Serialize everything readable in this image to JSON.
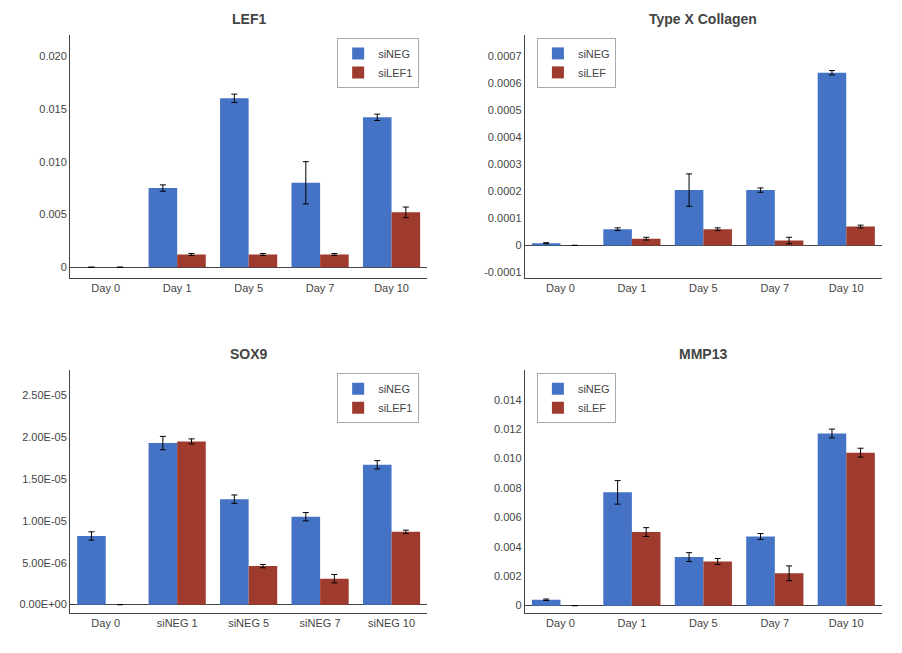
{
  "chart_data": [
    {
      "type": "bar",
      "title": "LEF1",
      "categories": [
        "Day 0",
        "Day 1",
        "Day 5",
        "Day 7",
        "Day 10"
      ],
      "series": [
        {
          "name": "siNEG",
          "color": "#4472C4",
          "values": [
            0,
            0.0075,
            0.016,
            0.008,
            0.0142
          ],
          "errors": [
            0,
            0.0003,
            0.0004,
            0.002,
            0.0003
          ]
        },
        {
          "name": "siLEF1",
          "color": "#9E3B2E",
          "values": [
            0,
            0.0012,
            0.0012,
            0.0012,
            0.0052
          ],
          "errors": [
            0,
            0.0001,
            0.0001,
            0.0001,
            0.0005
          ]
        }
      ],
      "ylim": [
        -0.001,
        0.022
      ],
      "yticks": [
        0,
        0.005,
        {
          "value": 0.01,
          "label": "0.010"
        },
        0.015,
        {
          "value": 0.02,
          "label": "0.020"
        }
      ],
      "grid": false,
      "legend": "upper right"
    },
    {
      "type": "bar",
      "title": "Type X Collagen",
      "categories": [
        "Day 0",
        "Day 1",
        "Day 5",
        "Day 7",
        "Day 10"
      ],
      "series": [
        {
          "name": "siNEG",
          "color": "#4472C4",
          "values": [
            8e-06,
            6e-05,
            0.000205,
            0.000205,
            0.00064
          ],
          "errors": [
            2e-06,
            5e-06,
            6e-05,
            8e-06,
            8e-06
          ]
        },
        {
          "name": "siLEF",
          "color": "#9E3B2E",
          "values": [
            0,
            2.5e-05,
            6e-05,
            1.8e-05,
            7e-05
          ],
          "errors": [
            0,
            5e-06,
            5e-06,
            1.2e-05,
            5e-06
          ]
        }
      ],
      "ylim": [
        -0.00012,
        0.00078
      ],
      "yticks": [
        -0.0001,
        0,
        0.0001,
        0.0002,
        0.0003,
        0.0004,
        0.0005,
        0.0006,
        0.0007
      ],
      "grid": false,
      "legend": "upper left"
    },
    {
      "type": "bar",
      "title": "SOX9",
      "categories": [
        "Day 0",
        "siNEG 1",
        "siNEG 5",
        "siNEG 7",
        "siNEG 10"
      ],
      "series": [
        {
          "name": "siNEG",
          "color": "#4472C4",
          "values": [
            8.2e-06,
            1.93e-05,
            1.26e-05,
            1.05e-05,
            1.67e-05
          ],
          "errors": [
            5e-07,
            8e-07,
            5e-07,
            5e-07,
            5e-07
          ]
        },
        {
          "name": "siLEF1",
          "color": "#9E3B2E",
          "values": [
            0,
            1.95e-05,
            4.6e-06,
            3.1e-06,
            8.7e-06
          ],
          "errors": [
            0,
            3e-07,
            2e-07,
            5e-07,
            2e-07
          ]
        }
      ],
      "ylim": [
        -1e-06,
        2.8e-05
      ],
      "yticks": [
        {
          "value": 0,
          "label": "0.00E+00"
        },
        {
          "value": 5e-06,
          "label": "5.00E-06"
        },
        {
          "value": 1e-05,
          "label": "1.00E-05"
        },
        {
          "value": 1.5e-05,
          "label": "1.50E-05"
        },
        {
          "value": 2e-05,
          "label": "2.00E-05"
        },
        {
          "value": 2.5e-05,
          "label": "2.50E-05"
        }
      ],
      "grid": false,
      "legend": "upper right"
    },
    {
      "type": "bar",
      "title": "MMP13",
      "categories": [
        "Day 0",
        "Day 1",
        "Day 5",
        "Day 7",
        "Day 10"
      ],
      "series": [
        {
          "name": "siNEG",
          "color": "#4472C4",
          "values": [
            0.0004,
            0.0077,
            0.0033,
            0.0047,
            0.0117
          ],
          "errors": [
            5e-05,
            0.0008,
            0.0003,
            0.0002,
            0.0003
          ]
        },
        {
          "name": "siLEF",
          "color": "#9E3B2E",
          "values": [
            0,
            0.005,
            0.003,
            0.0022,
            0.0104
          ],
          "errors": [
            0,
            0.0003,
            0.0002,
            0.0005,
            0.0003
          ]
        }
      ],
      "ylim": [
        -0.0005,
        0.016
      ],
      "yticks": [
        0,
        0.002,
        0.004,
        0.006,
        0.008,
        {
          "value": 0.01,
          "label": "0.010"
        },
        0.012,
        0.014
      ],
      "grid": false,
      "legend": "upper left"
    }
  ]
}
